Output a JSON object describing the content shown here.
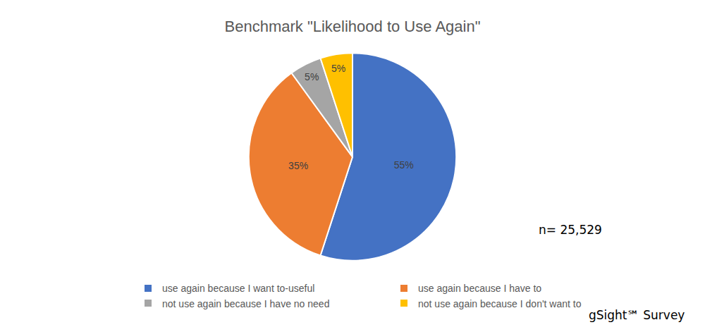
{
  "chart_data": {
    "type": "pie",
    "title": "Benchmark \"Likelihood to Use Again\"",
    "categories": [
      "use again because I want to-useful",
      "use again because I have to",
      "not use again because I have no need",
      "not use again because I don't want to"
    ],
    "values": [
      55,
      35,
      5,
      5
    ],
    "value_labels": [
      "55%",
      "35%",
      "5%",
      "5%"
    ],
    "colors": [
      "#4472c4",
      "#ed7d31",
      "#a5a5a5",
      "#ffc000"
    ],
    "data_labels": true,
    "legend": "bottom",
    "annotations": [
      "n= 25,529",
      "gSight℠ Survey"
    ]
  }
}
